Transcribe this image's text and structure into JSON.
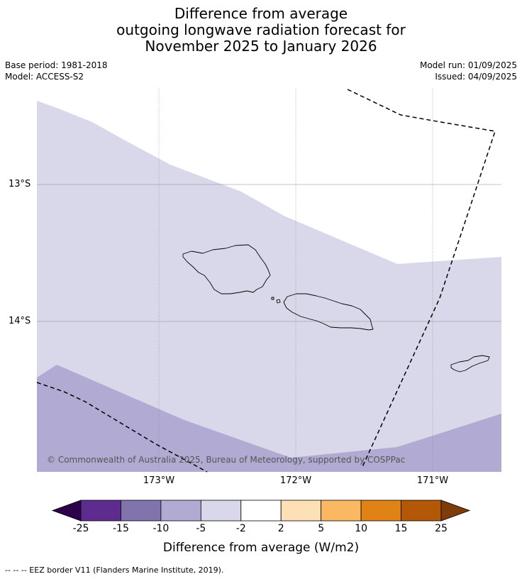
{
  "title": {
    "line1": "Difference from average",
    "line2": "outgoing longwave radiation forecast for",
    "line3": "November 2025 to January 2026"
  },
  "meta_left": {
    "base_period": "Base period: 1981-2018",
    "model": "Model: ACCESS-S2"
  },
  "meta_right": {
    "model_run": "Model run: 01/09/2025",
    "issued": "Issued: 04/09/2025"
  },
  "map": {
    "lat_labels": [
      "13°S",
      "14°S"
    ],
    "lon_labels": [
      "173°W",
      "172°W",
      "171°W"
    ],
    "copyright": "© Commonwealth of Australia 2025, Bureau of Meteorology, supported by COSPPac",
    "colors": {
      "light_band": "#d8d8ea",
      "mid_band": "#b1abd3",
      "land_outline": "#000000",
      "eez_line": "#000000"
    }
  },
  "colorbar": {
    "ticks": [
      "-25",
      "-15",
      "-10",
      "-5",
      "-2",
      "2",
      "5",
      "10",
      "15",
      "25"
    ],
    "colors": [
      "#2d004b",
      "#5e2b8e",
      "#8174ad",
      "#b1abd3",
      "#d8d8ea",
      "#ffffff",
      "#fee0b6",
      "#fbb862",
      "#e08214",
      "#b35806",
      "#7f3b08"
    ],
    "label": "Difference from average (W/m2)"
  },
  "footnote": "-- -- -- EEZ border V11 (Flanders Marine Institute, 2019)."
}
